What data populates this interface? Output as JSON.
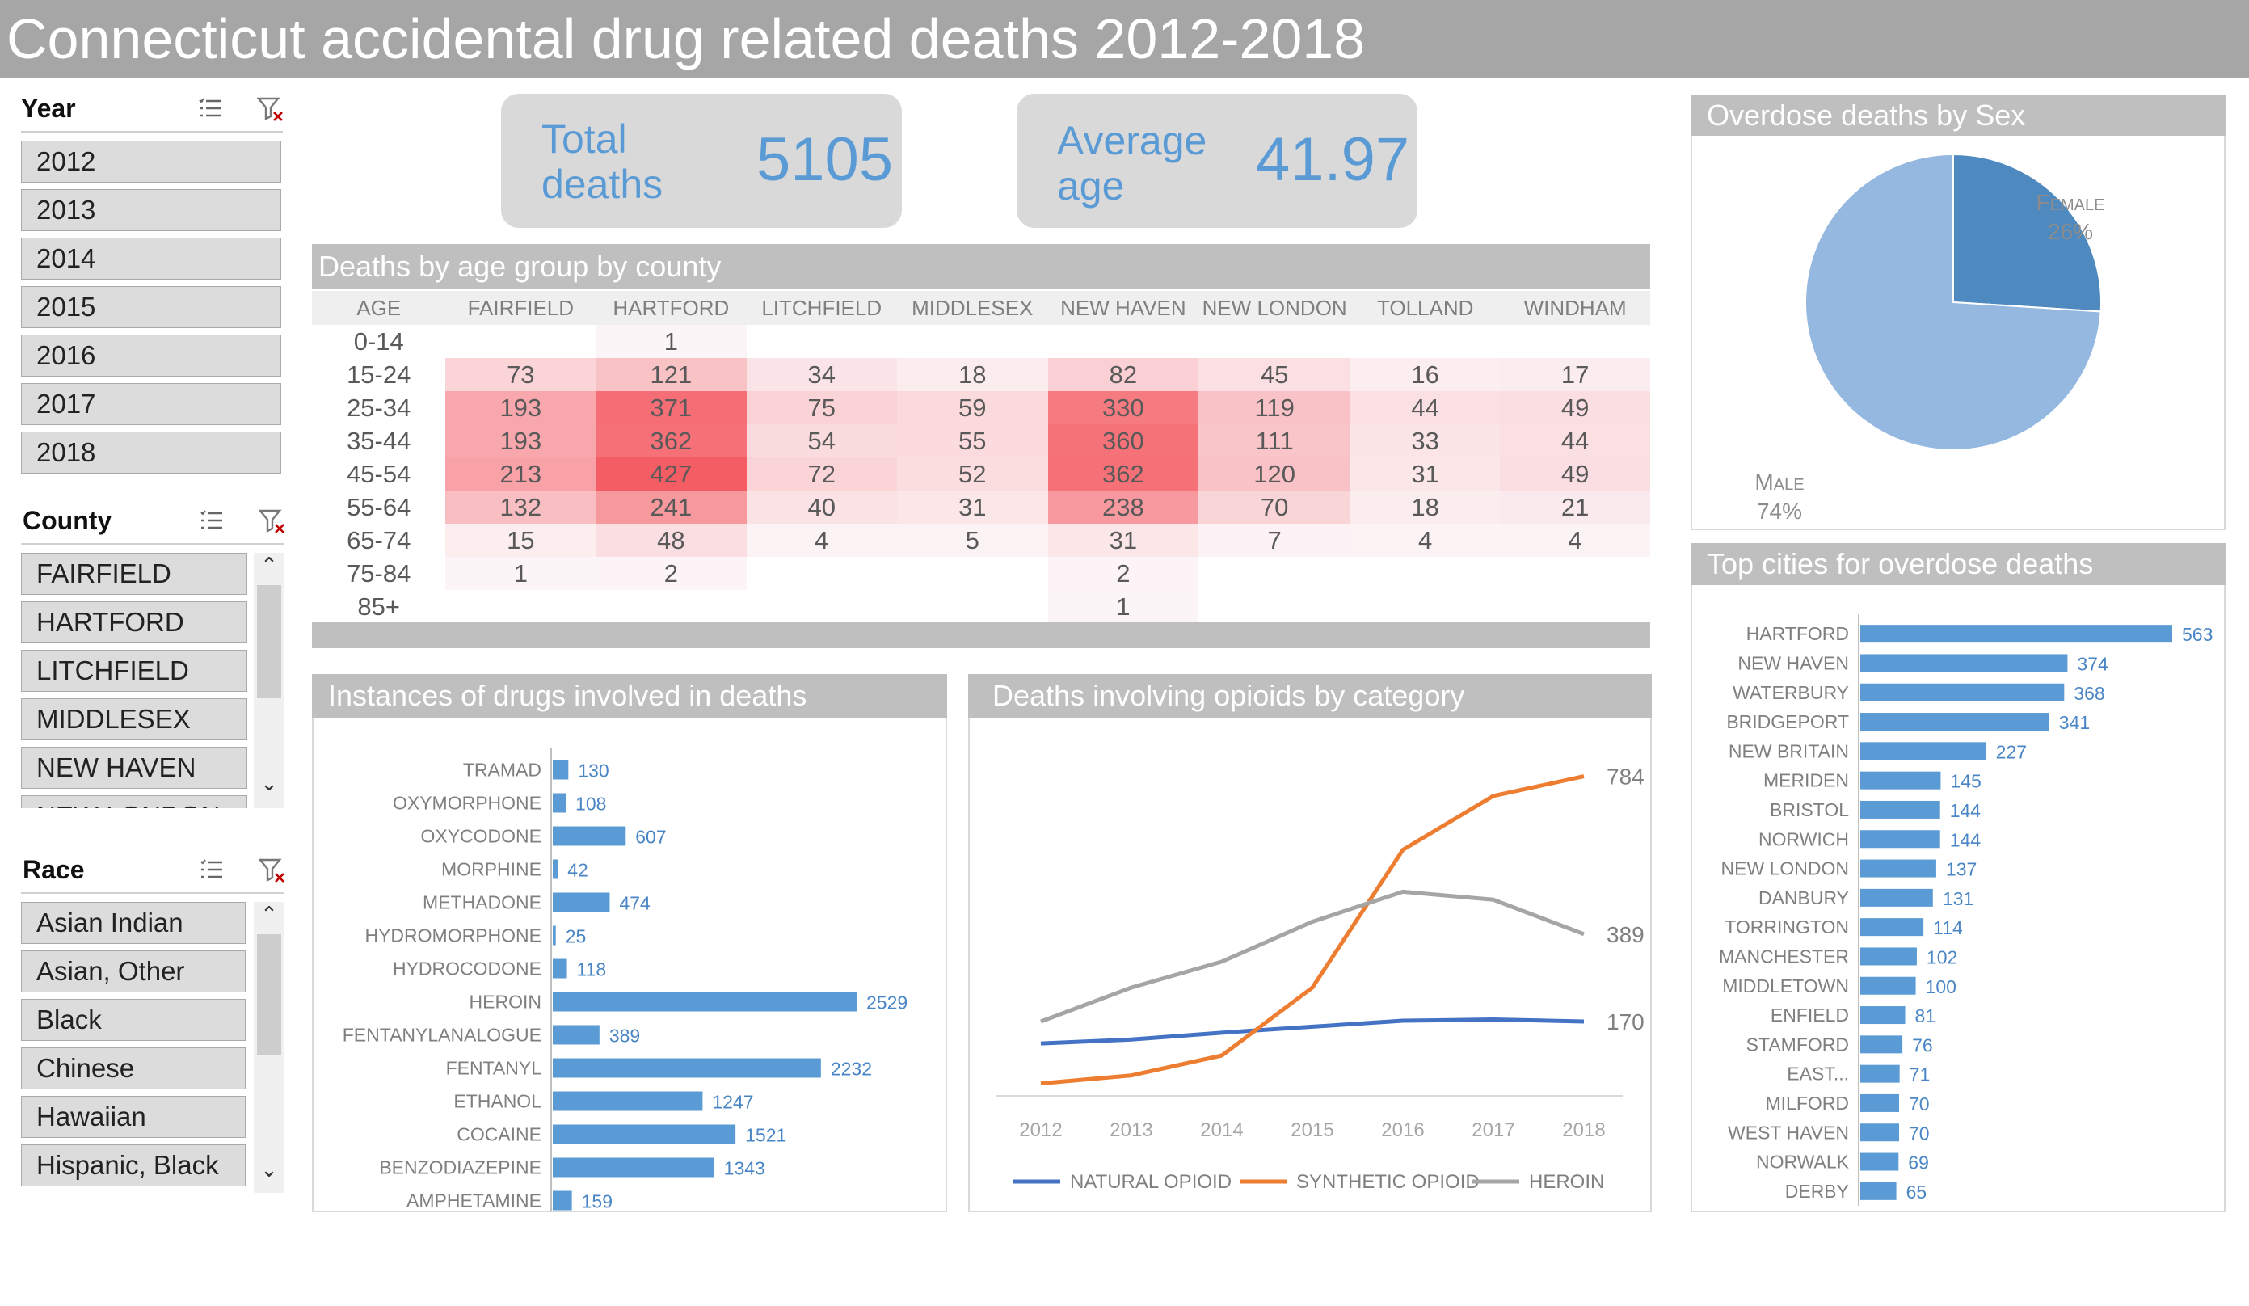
{
  "title": "Connecticut accidental drug related deaths 2012-2018",
  "colors": {
    "accent": "#5b9bd5",
    "header_gray": "#a6a6a6",
    "panel_gray": "#bfbfbf",
    "heat_max": "#f45d64",
    "pie_female": "#4e89c0",
    "pie_male": "#94b8e0",
    "natural": "#4472c4",
    "synthetic": "#ed7d31",
    "heroin": "#a5a5a5"
  },
  "slicers": {
    "year": {
      "label": "Year",
      "items": [
        "2012",
        "2013",
        "2014",
        "2015",
        "2016",
        "2017",
        "2018"
      ]
    },
    "county": {
      "label": "County",
      "items": [
        "FAIRFIELD",
        "HARTFORD",
        "LITCHFIELD",
        "MIDDLESEX",
        "NEW HAVEN",
        "NEW LONDON"
      ]
    },
    "race": {
      "label": "Race",
      "items": [
        "Asian Indian",
        "Asian, Other",
        "Black",
        "Chinese",
        "Hawaiian",
        "Hispanic, Black"
      ]
    },
    "icons": {
      "multiselect": "multi-select-icon",
      "clear": "clear-filter-icon",
      "up": "scroll-up-icon",
      "down": "scroll-down-icon"
    }
  },
  "kpis": {
    "total": {
      "label": "Total deaths",
      "value": "5105"
    },
    "average": {
      "label": "Average age",
      "value": "41.97"
    }
  },
  "heatmap": {
    "title": "Deaths by age group by county",
    "age_header": "AGE",
    "columns": [
      "FAIRFIELD",
      "HARTFORD",
      "LITCHFIELD",
      "MIDDLESEX",
      "NEW HAVEN",
      "NEW LONDON",
      "TOLLAND",
      "WINDHAM"
    ],
    "rows": [
      {
        "age": "0-14",
        "values": [
          null,
          1,
          null,
          null,
          null,
          null,
          null,
          null
        ]
      },
      {
        "age": "15-24",
        "values": [
          73,
          121,
          34,
          18,
          82,
          45,
          16,
          17
        ]
      },
      {
        "age": "25-34",
        "values": [
          193,
          371,
          75,
          59,
          330,
          119,
          44,
          49
        ]
      },
      {
        "age": "35-44",
        "values": [
          193,
          362,
          54,
          55,
          360,
          111,
          33,
          44
        ]
      },
      {
        "age": "45-54",
        "values": [
          213,
          427,
          72,
          52,
          362,
          120,
          31,
          49
        ]
      },
      {
        "age": "55-64",
        "values": [
          132,
          241,
          40,
          31,
          238,
          70,
          18,
          21
        ]
      },
      {
        "age": "65-74",
        "values": [
          15,
          48,
          4,
          5,
          31,
          7,
          4,
          4
        ]
      },
      {
        "age": "75-84",
        "values": [
          1,
          2,
          null,
          null,
          2,
          null,
          null,
          null
        ]
      },
      {
        "age": "85+",
        "values": [
          null,
          null,
          null,
          null,
          1,
          null,
          null,
          null
        ]
      }
    ]
  },
  "chart_data": [
    {
      "id": "drugs",
      "type": "bar",
      "orientation": "horizontal",
      "title": "Instances of drugs involved in deaths",
      "categories": [
        "TRAMAD",
        "OXYMORPHONE",
        "OXYCODONE",
        "MORPHINE",
        "METHADONE",
        "HYDROMORPHONE",
        "HYDROCODONE",
        "HEROIN",
        "FENTANYLANALOGUE",
        "FENTANYL",
        "ETHANOL",
        "COCAINE",
        "BENZODIAZEPINE",
        "AMPHETAMINE"
      ],
      "values": [
        130,
        108,
        607,
        42,
        474,
        25,
        118,
        2529,
        389,
        2232,
        1247,
        1521,
        1343,
        159
      ],
      "xlim": [
        0,
        2529
      ]
    },
    {
      "id": "opioids",
      "type": "line",
      "title": "Deaths involving opioids by category",
      "x": [
        "2012",
        "2013",
        "2014",
        "2015",
        "2016",
        "2017",
        "2018"
      ],
      "series": [
        {
          "name": "NATURAL OPIOID",
          "values": [
            115,
            125,
            142,
            157,
            172,
            175,
            170
          ]
        },
        {
          "name": "SYNTHETIC OPIOID",
          "values": [
            15,
            35,
            85,
            255,
            600,
            735,
            784
          ]
        },
        {
          "name": "HEROIN",
          "values": [
            170,
            255,
            320,
            420,
            495,
            475,
            389
          ]
        }
      ],
      "end_labels": [
        "170",
        "784",
        "389"
      ],
      "ylim": [
        0,
        850
      ],
      "legend": "bottom"
    },
    {
      "id": "sex",
      "type": "pie",
      "title": "Overdose deaths by Sex",
      "categories": [
        "Female",
        "Male"
      ],
      "values": [
        26,
        74
      ],
      "labels": [
        "26%",
        "74%"
      ]
    },
    {
      "id": "cities",
      "type": "bar",
      "orientation": "horizontal",
      "title": "Top cities for overdose deaths",
      "categories": [
        "HARTFORD",
        "NEW HAVEN",
        "WATERBURY",
        "BRIDGEPORT",
        "NEW BRITAIN",
        "MERIDEN",
        "BRISTOL",
        "NORWICH",
        "NEW LONDON",
        "DANBURY",
        "TORRINGTON",
        "MANCHESTER",
        "MIDDLETOWN",
        "ENFIELD",
        "STAMFORD",
        "EAST...",
        "MILFORD",
        "WEST HAVEN",
        "NORWALK",
        "DERBY"
      ],
      "values": [
        563,
        374,
        368,
        341,
        227,
        145,
        144,
        144,
        137,
        131,
        114,
        102,
        100,
        81,
        76,
        71,
        70,
        70,
        69,
        65
      ],
      "xlim": [
        0,
        563
      ]
    }
  ]
}
